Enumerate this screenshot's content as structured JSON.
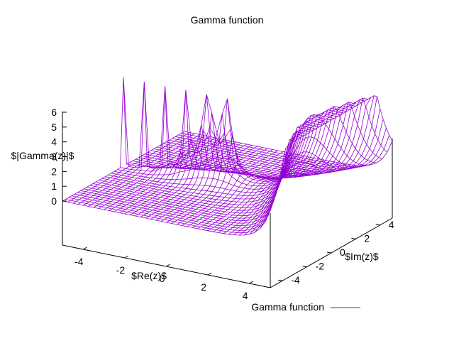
{
  "chart_data": {
    "type": "surface3d",
    "title": "Gamma function",
    "xlabel": "$Re(z)$",
    "ylabel": "$Im(z)$",
    "zlabel": "$|Gamma(z)|$",
    "x_ticks": [
      "-4",
      "-2",
      "0",
      "2",
      "4"
    ],
    "y_ticks": [
      "-4",
      "-2",
      "0",
      "2",
      "4"
    ],
    "z_ticks": [
      "0",
      "1",
      "2",
      "3",
      "4",
      "5",
      "6"
    ],
    "xlim": [
      -5,
      5
    ],
    "ylim": [
      -5,
      5
    ],
    "zlim": [
      0,
      6
    ],
    "function": "abs(gamma(x + i*y))",
    "grid": false,
    "legend_position": "bottom-right",
    "series": [
      {
        "name": "Gamma function",
        "color": "#9400D3",
        "style": "wireframe"
      }
    ]
  }
}
